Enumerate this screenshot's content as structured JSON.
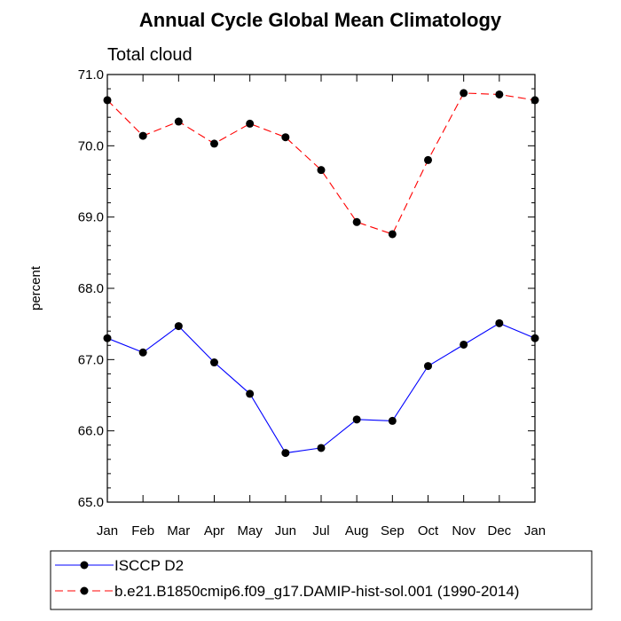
{
  "chart_data": {
    "type": "line",
    "title": "Annual Cycle Global Mean Climatology",
    "subtitle": "Total cloud",
    "xlabel": "",
    "ylabel": "percent",
    "ylim": [
      65.0,
      71.0
    ],
    "yticks": [
      "65.0",
      "66.0",
      "67.0",
      "68.0",
      "69.0",
      "70.0",
      "71.0"
    ],
    "categories": [
      "Jan",
      "Feb",
      "Mar",
      "Apr",
      "May",
      "Jun",
      "Jul",
      "Aug",
      "Sep",
      "Oct",
      "Nov",
      "Dec",
      "Jan"
    ],
    "grid": false,
    "legend_placement": "bottom",
    "series": [
      {
        "name": "ISCCP D2",
        "color": "#0000ff",
        "dash": "solid",
        "values": [
          67.3,
          67.1,
          67.47,
          66.96,
          66.52,
          65.69,
          65.76,
          66.16,
          66.14,
          66.91,
          67.21,
          67.51,
          67.3
        ]
      },
      {
        "name": "b.e21.B1850cmip6.f09_g17.DAMIP-hist-sol.001 (1990-2014)",
        "color": "#ff0000",
        "dash": "dashed",
        "values": [
          70.64,
          70.14,
          70.34,
          70.03,
          70.31,
          70.12,
          69.66,
          68.93,
          68.76,
          69.8,
          70.74,
          70.72,
          70.64
        ]
      }
    ]
  }
}
